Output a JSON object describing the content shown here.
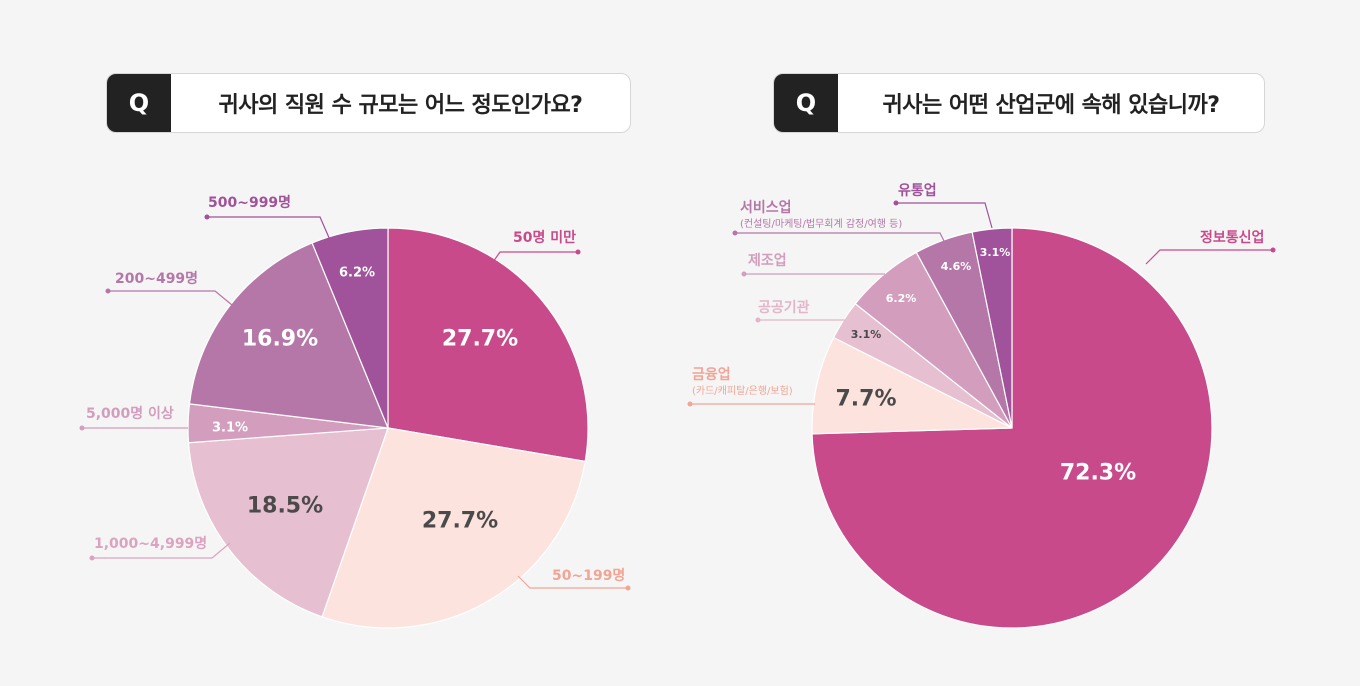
{
  "chart_data": [
    {
      "type": "pie",
      "title": "귀사의 직원 수 규모는 어느 정도인가요?",
      "q_label": "Q",
      "slices": [
        {
          "label": "50명 미만",
          "value": 27.7,
          "display": "27.7%",
          "color": "#c94a8a"
        },
        {
          "label": "50~199명",
          "value": 27.7,
          "display": "27.7%",
          "color": "#fde3de"
        },
        {
          "label": "1,000~4,999명",
          "value": 18.5,
          "display": "18.5%",
          "color": "#e6bfd0"
        },
        {
          "label": "5,000명 이상",
          "value": 3.1,
          "display": "3.1%",
          "color": "#d39ebe"
        },
        {
          "label": "200~499명",
          "value": 16.9,
          "display": "16.9%",
          "color": "#b577a8"
        },
        {
          "label": "500~999명",
          "value": 6.2,
          "display": "6.2%",
          "color": "#a0529a"
        }
      ]
    },
    {
      "type": "pie",
      "title": "귀사는 어떤 산업군에 속해 있습니까?",
      "q_label": "Q",
      "slices": [
        {
          "label": "정보통신업",
          "value": 72.3,
          "display": "72.3%",
          "color": "#c94a8a"
        },
        {
          "label": "금융업",
          "sublabel": "(카드/캐피탈/은행/보험)",
          "value": 7.7,
          "display": "7.7%",
          "color": "#fde3de"
        },
        {
          "label": "공공기관",
          "value": 3.1,
          "display": "3.1%",
          "color": "#e6bfd0"
        },
        {
          "label": "제조업",
          "value": 6.2,
          "display": "6.2%",
          "color": "#d39ebe"
        },
        {
          "label": "서비스업",
          "sublabel": "(컨설팅/마케팅/법무회계 감정/여행 등)",
          "value": 4.6,
          "display": "4.6%",
          "color": "#b577a8"
        },
        {
          "label": "유통업",
          "value": 3.1,
          "display": "3.1%",
          "color": "#a0529a"
        }
      ]
    }
  ]
}
